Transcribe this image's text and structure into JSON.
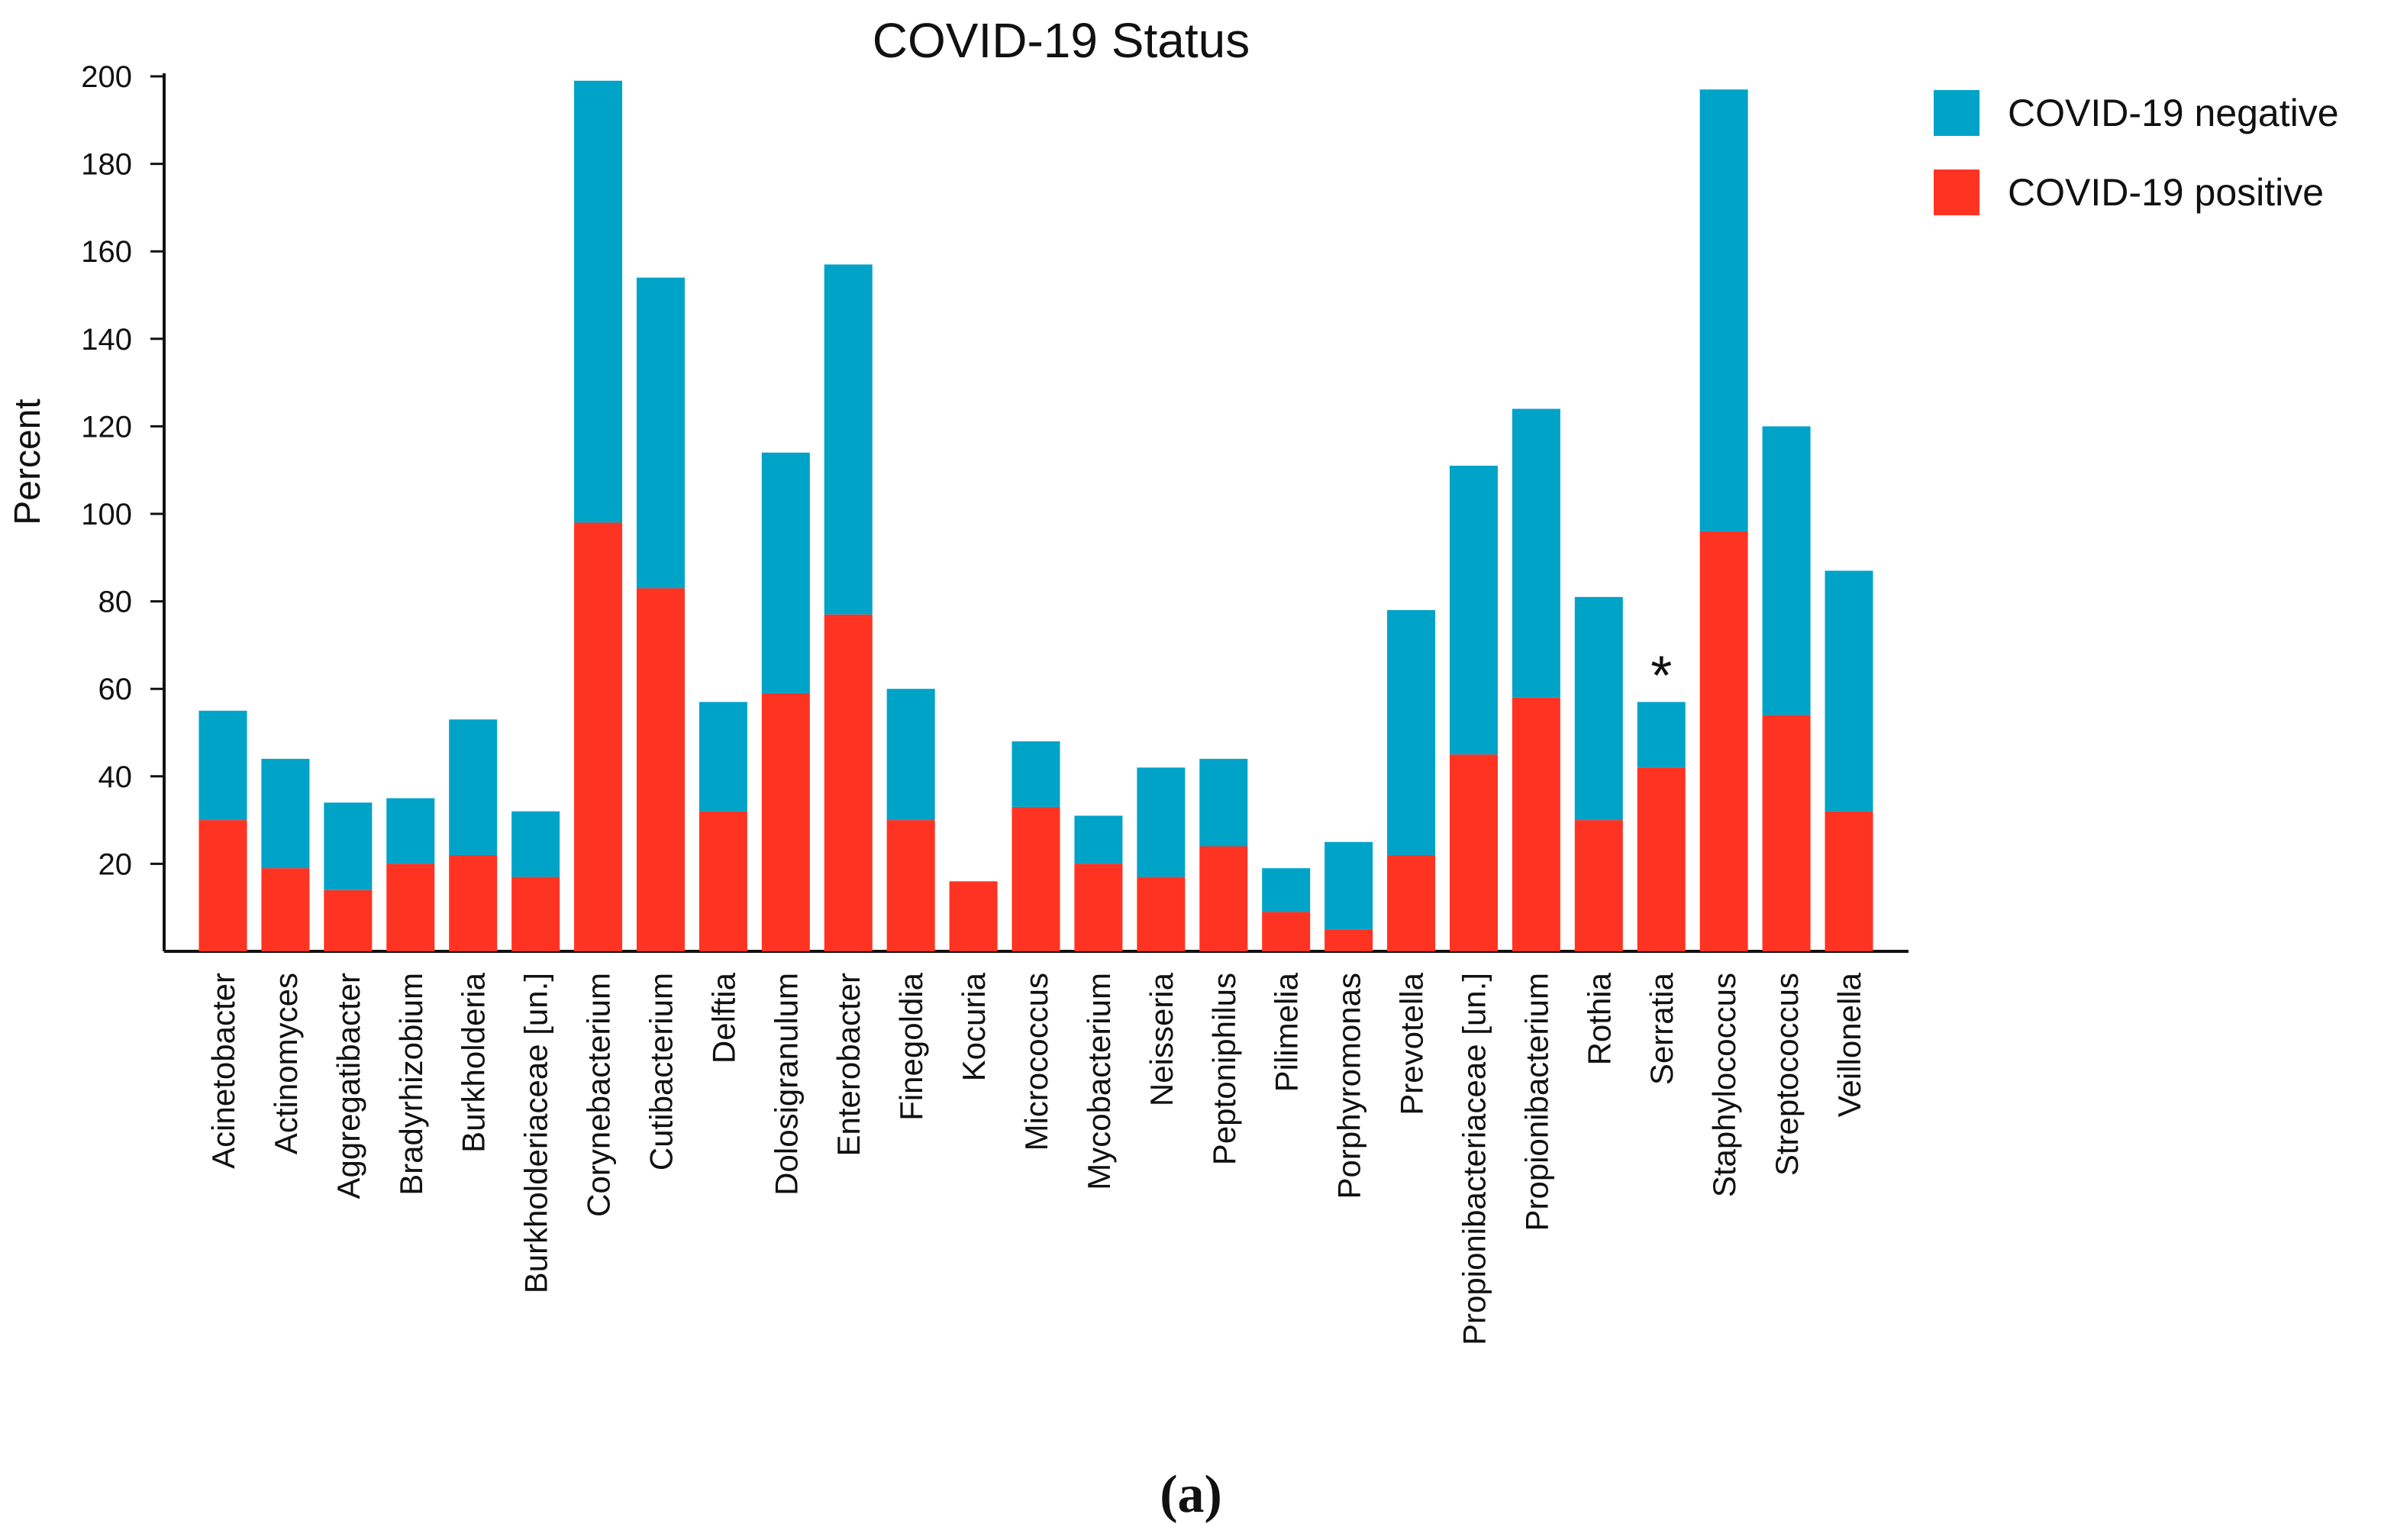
{
  "chart_data": {
    "type": "bar",
    "stacked": true,
    "title": "COVID-19 Status",
    "xlabel": "",
    "ylabel": "Percent",
    "ylim": [
      0,
      200
    ],
    "yticks": [
      20,
      40,
      60,
      80,
      100,
      120,
      140,
      160,
      180,
      200
    ],
    "categories": [
      "Acinetobacter",
      "Actinomyces",
      "Aggregatibacter",
      "Bradyrhizobium",
      "Burkholderia",
      "Burkholderiaceae [un.]",
      "Corynebacterium",
      "Cutibacterium",
      "Delftia",
      "Dolosigranulum",
      "Enterobacter",
      "Finegoldia",
      "Kocuria",
      "Micrococcus",
      "Mycobacterium",
      "Neisseria",
      "Peptoniphilus",
      "Pilimelia",
      "Porphyromonas",
      "Prevotella",
      "Propionibacteriaceae [un.]",
      "Propionibacterium",
      "Rothia",
      "Serratia",
      "Staphylococcus",
      "Streptococcus",
      "Veillonella"
    ],
    "series": [
      {
        "name": "COVID-19 positive",
        "color": "#ff3322",
        "values": [
          30,
          19,
          14,
          20,
          22,
          17,
          98,
          83,
          32,
          59,
          77,
          30,
          16,
          33,
          20,
          17,
          24,
          9,
          5,
          22,
          45,
          58,
          30,
          42,
          96,
          54,
          32
        ]
      },
      {
        "name": "COVID-19 negative",
        "color": "#00a3c8",
        "values": [
          25,
          25,
          20,
          15,
          31,
          15,
          101,
          71,
          25,
          55,
          80,
          30,
          0,
          15,
          11,
          25,
          20,
          10,
          20,
          56,
          66,
          66,
          51,
          15,
          101,
          66,
          55
        ]
      }
    ],
    "legend": {
      "position": "top-right",
      "entries": [
        "COVID-19 negative",
        "COVID-19 positive"
      ]
    },
    "annotations": [
      {
        "category": "Serratia",
        "text": "*"
      }
    ],
    "grid": false
  },
  "caption": "(a)"
}
